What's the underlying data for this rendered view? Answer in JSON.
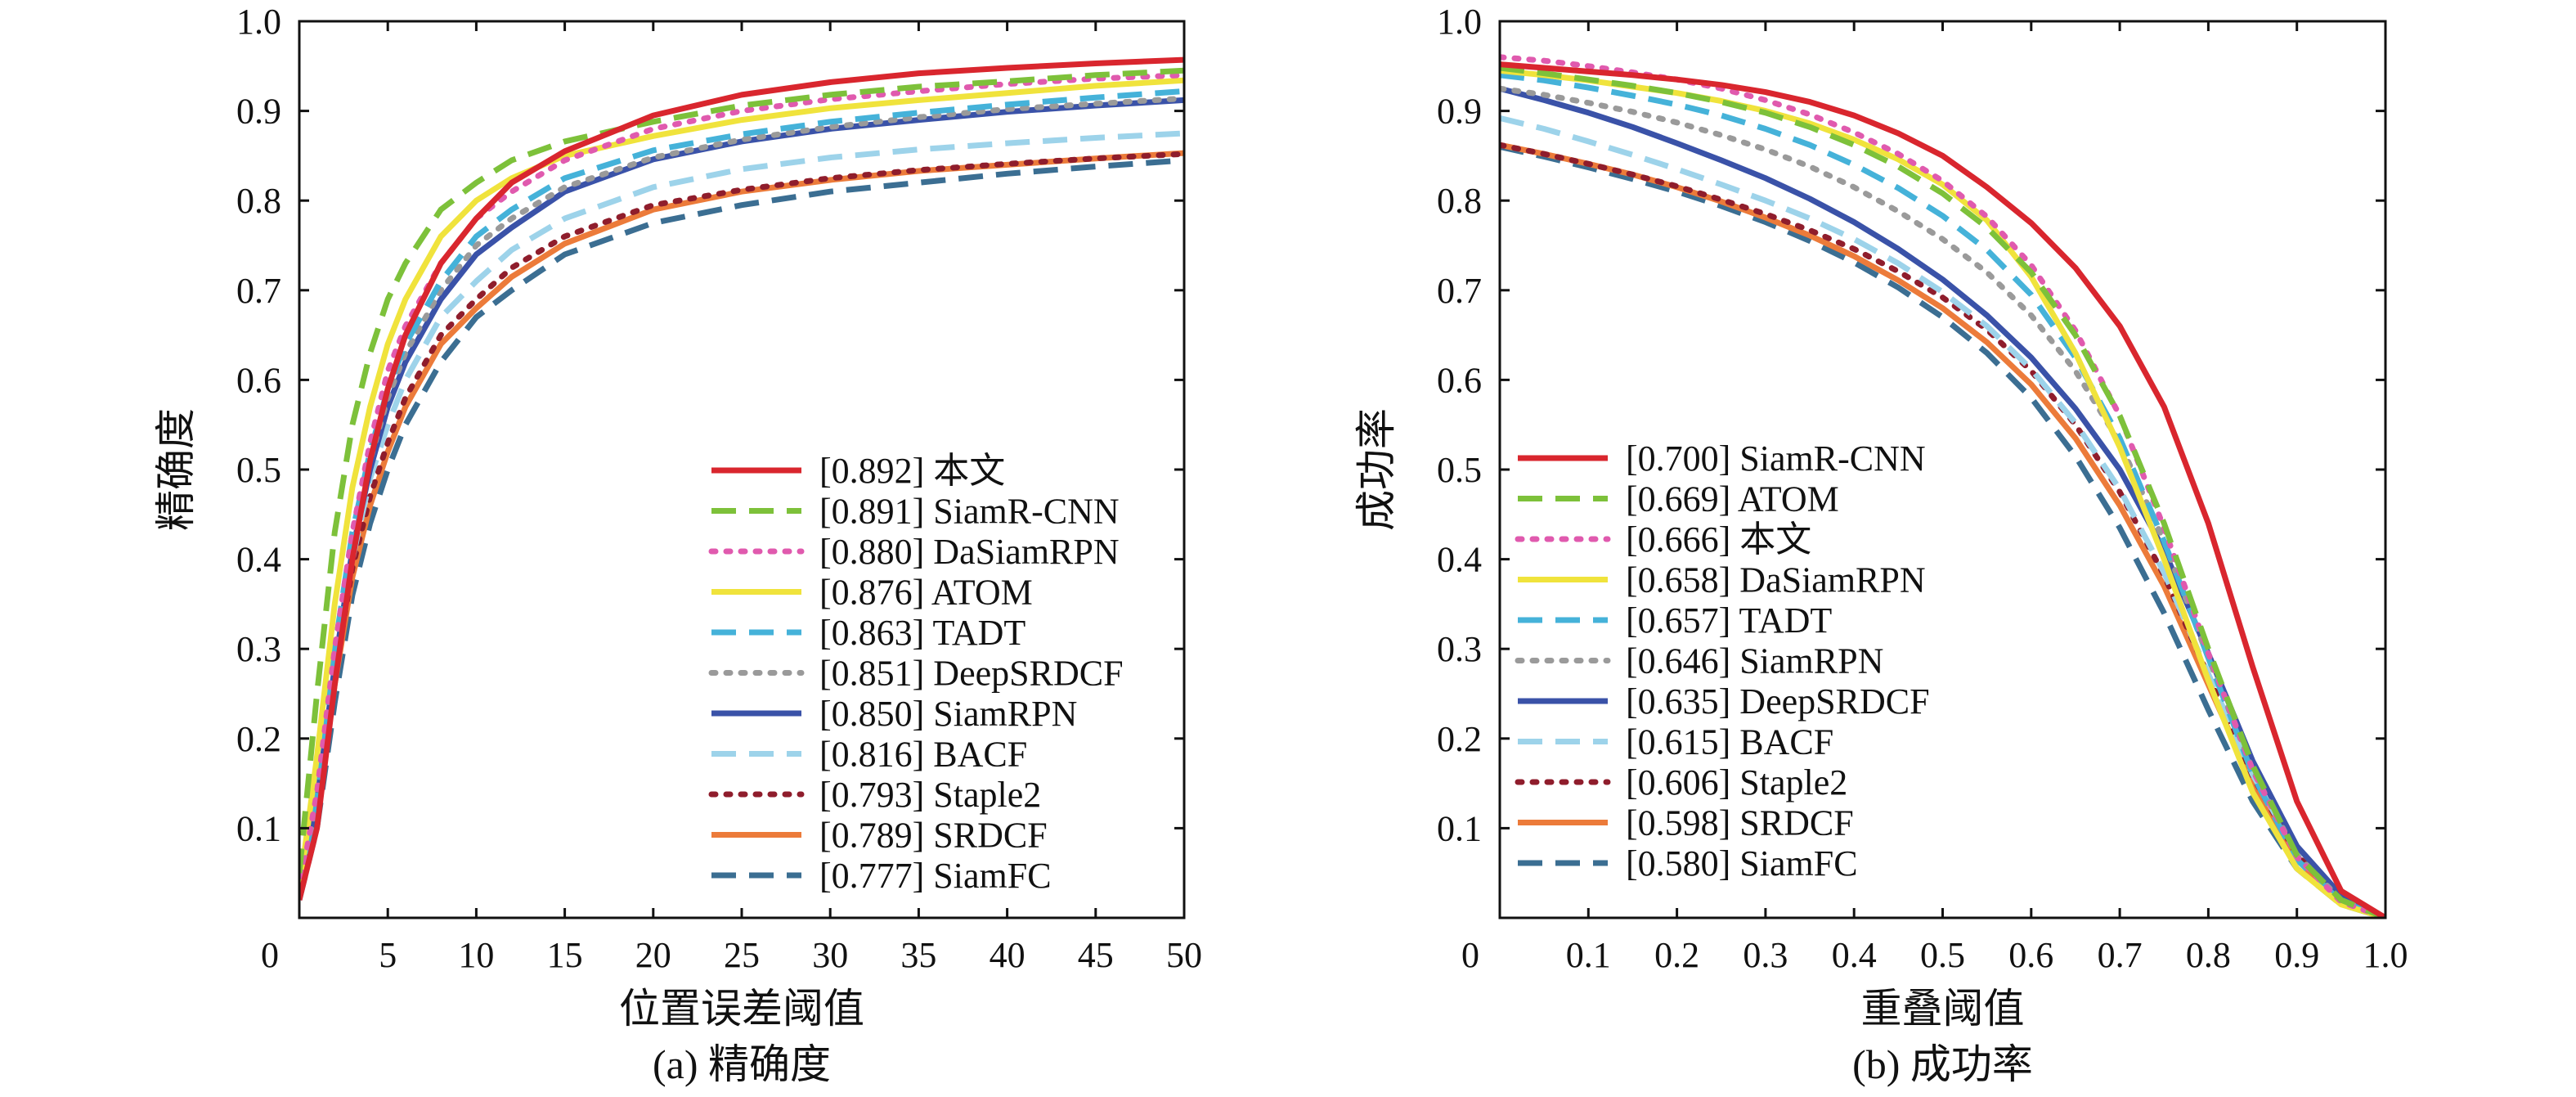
{
  "chart_data": [
    {
      "type": "line",
      "caption": "(a) 精确度",
      "xlabel": "位置误差阈值",
      "ylabel": "精确度",
      "xlim": [
        0,
        50
      ],
      "ylim": [
        0,
        1.0
      ],
      "x_ticks": [
        0,
        5,
        10,
        15,
        20,
        25,
        30,
        35,
        40,
        45,
        50
      ],
      "x_tick_labels": [
        "0",
        "5",
        "10",
        "15",
        "20",
        "25",
        "30",
        "35",
        "40",
        "45",
        "50"
      ],
      "y_ticks": [
        0.1,
        0.2,
        0.3,
        0.4,
        0.5,
        0.6,
        0.7,
        0.8,
        0.9,
        1.0
      ],
      "y_tick_labels": [
        "0.1",
        "0.2",
        "0.3",
        "0.4",
        "0.5",
        "0.6",
        "0.7",
        "0.8",
        "0.9",
        "1.0"
      ],
      "legend_placement": "lower-right",
      "x": [
        0,
        1,
        2,
        3,
        4,
        5,
        6,
        8,
        10,
        12,
        15,
        20,
        25,
        30,
        35,
        40,
        45,
        50
      ],
      "series": [
        {
          "name": "[0.892] 本文",
          "color": "#d9262e",
          "style": "solid",
          "values": [
            0.02,
            0.1,
            0.26,
            0.4,
            0.51,
            0.59,
            0.65,
            0.73,
            0.78,
            0.82,
            0.855,
            0.895,
            0.918,
            0.932,
            0.942,
            0.948,
            0.953,
            0.957
          ]
        },
        {
          "name": "[0.891] SiamR-CNN",
          "color": "#7dc13a",
          "style": "dashed",
          "values": [
            0.05,
            0.25,
            0.43,
            0.55,
            0.63,
            0.69,
            0.73,
            0.79,
            0.82,
            0.845,
            0.866,
            0.888,
            0.906,
            0.918,
            0.927,
            0.933,
            0.94,
            0.945
          ]
        },
        {
          "name": "[0.880] DaSiamRPN",
          "color": "#e05aae",
          "style": "dotted",
          "values": [
            0.03,
            0.14,
            0.3,
            0.43,
            0.53,
            0.61,
            0.66,
            0.73,
            0.78,
            0.81,
            0.845,
            0.88,
            0.9,
            0.913,
            0.922,
            0.93,
            0.936,
            0.94
          ]
        },
        {
          "name": "[0.876] ATOM",
          "color": "#f0e33c",
          "style": "solid",
          "values": [
            0.03,
            0.18,
            0.35,
            0.48,
            0.57,
            0.64,
            0.69,
            0.76,
            0.8,
            0.825,
            0.85,
            0.872,
            0.89,
            0.903,
            0.912,
            0.92,
            0.928,
            0.934
          ]
        },
        {
          "name": "[0.863] TADT",
          "color": "#45b2d9",
          "style": "dashed",
          "values": [
            0.03,
            0.14,
            0.3,
            0.43,
            0.52,
            0.59,
            0.64,
            0.71,
            0.76,
            0.79,
            0.825,
            0.856,
            0.874,
            0.888,
            0.898,
            0.907,
            0.915,
            0.922
          ]
        },
        {
          "name": "[0.851] DeepSRDCF",
          "color": "#9a9a9a",
          "style": "dotted",
          "values": [
            0.03,
            0.13,
            0.29,
            0.42,
            0.51,
            0.58,
            0.63,
            0.7,
            0.75,
            0.78,
            0.815,
            0.848,
            0.868,
            0.882,
            0.893,
            0.902,
            0.908,
            0.914
          ]
        },
        {
          "name": "[0.850] SiamRPN",
          "color": "#3a52a8",
          "style": "solid",
          "values": [
            0.03,
            0.13,
            0.28,
            0.41,
            0.5,
            0.57,
            0.62,
            0.69,
            0.74,
            0.77,
            0.81,
            0.846,
            0.866,
            0.88,
            0.89,
            0.899,
            0.906,
            0.912
          ]
        },
        {
          "name": "[0.816] BACF",
          "color": "#9dd3ea",
          "style": "dashed",
          "values": [
            0.03,
            0.12,
            0.27,
            0.4,
            0.49,
            0.55,
            0.6,
            0.67,
            0.71,
            0.745,
            0.78,
            0.815,
            0.835,
            0.848,
            0.857,
            0.864,
            0.87,
            0.875
          ]
        },
        {
          "name": "[0.793] Staple2",
          "color": "#8f1d2c",
          "style": "dotted",
          "values": [
            0.03,
            0.12,
            0.27,
            0.39,
            0.47,
            0.53,
            0.58,
            0.65,
            0.69,
            0.725,
            0.76,
            0.795,
            0.812,
            0.825,
            0.834,
            0.841,
            0.847,
            0.852
          ]
        },
        {
          "name": "[0.789] SRDCF",
          "color": "#ec7b3a",
          "style": "solid",
          "values": [
            0.03,
            0.11,
            0.26,
            0.38,
            0.46,
            0.52,
            0.57,
            0.64,
            0.68,
            0.715,
            0.752,
            0.79,
            0.81,
            0.823,
            0.833,
            0.84,
            0.847,
            0.853
          ]
        },
        {
          "name": "[0.777] SiamFC",
          "color": "#3b6e92",
          "style": "dashed",
          "values": [
            0.02,
            0.1,
            0.24,
            0.36,
            0.44,
            0.5,
            0.55,
            0.62,
            0.67,
            0.7,
            0.74,
            0.775,
            0.795,
            0.81,
            0.82,
            0.83,
            0.838,
            0.845
          ]
        }
      ]
    },
    {
      "type": "line",
      "caption": "(b) 成功率",
      "xlabel": "重叠阈值",
      "ylabel": "成功率",
      "xlim": [
        0,
        1.0
      ],
      "ylim": [
        0,
        1.0
      ],
      "x_ticks": [
        0,
        0.1,
        0.2,
        0.3,
        0.4,
        0.5,
        0.6,
        0.7,
        0.8,
        0.9,
        1.0
      ],
      "x_tick_labels": [
        "0",
        "0.1",
        "0.2",
        "0.3",
        "0.4",
        "0.5",
        "0.6",
        "0.7",
        "0.8",
        "0.9",
        "1.0"
      ],
      "y_ticks": [
        0.1,
        0.2,
        0.3,
        0.4,
        0.5,
        0.6,
        0.7,
        0.8,
        0.9,
        1.0
      ],
      "y_tick_labels": [
        "0.1",
        "0.2",
        "0.3",
        "0.4",
        "0.5",
        "0.6",
        "0.7",
        "0.8",
        "0.9",
        "1.0"
      ],
      "legend_placement": "lower-left",
      "x": [
        0,
        0.05,
        0.1,
        0.15,
        0.2,
        0.25,
        0.3,
        0.35,
        0.4,
        0.45,
        0.5,
        0.55,
        0.6,
        0.65,
        0.7,
        0.75,
        0.8,
        0.85,
        0.9,
        0.95,
        1.0
      ],
      "series": [
        {
          "name": "[0.700] SiamR-CNN",
          "color": "#d9262e",
          "style": "solid",
          "values": [
            0.952,
            0.948,
            0.944,
            0.94,
            0.935,
            0.929,
            0.921,
            0.91,
            0.895,
            0.875,
            0.85,
            0.815,
            0.775,
            0.725,
            0.66,
            0.57,
            0.44,
            0.28,
            0.13,
            0.03,
            0.0
          ]
        },
        {
          "name": "[0.669] ATOM",
          "color": "#7dc13a",
          "style": "dashed",
          "values": [
            0.948,
            0.942,
            0.935,
            0.928,
            0.92,
            0.91,
            0.898,
            0.882,
            0.862,
            0.838,
            0.808,
            0.77,
            0.72,
            0.65,
            0.56,
            0.44,
            0.3,
            0.17,
            0.07,
            0.02,
            0.0
          ]
        },
        {
          "name": "[0.666] 本文",
          "color": "#e05aae",
          "style": "dotted",
          "values": [
            0.96,
            0.956,
            0.95,
            0.943,
            0.935,
            0.925,
            0.912,
            0.896,
            0.876,
            0.852,
            0.822,
            0.782,
            0.728,
            0.655,
            0.56,
            0.435,
            0.295,
            0.165,
            0.068,
            0.018,
            0.0
          ]
        },
        {
          "name": "[0.658] DaSiamRPN",
          "color": "#f0e33c",
          "style": "solid",
          "values": [
            0.945,
            0.94,
            0.934,
            0.927,
            0.92,
            0.911,
            0.9,
            0.886,
            0.868,
            0.846,
            0.818,
            0.778,
            0.715,
            0.63,
            0.525,
            0.4,
            0.265,
            0.14,
            0.055,
            0.015,
            0.0
          ]
        },
        {
          "name": "[0.657] TADT",
          "color": "#45b2d9",
          "style": "dashed",
          "values": [
            0.94,
            0.934,
            0.926,
            0.917,
            0.907,
            0.895,
            0.88,
            0.862,
            0.84,
            0.814,
            0.783,
            0.745,
            0.695,
            0.625,
            0.535,
            0.42,
            0.29,
            0.16,
            0.065,
            0.018,
            0.0
          ]
        },
        {
          "name": "[0.646] SiamRPN",
          "color": "#9a9a9a",
          "style": "dotted",
          "values": [
            0.925,
            0.918,
            0.909,
            0.899,
            0.887,
            0.873,
            0.857,
            0.838,
            0.815,
            0.788,
            0.757,
            0.72,
            0.672,
            0.61,
            0.53,
            0.42,
            0.29,
            0.165,
            0.07,
            0.02,
            0.0
          ]
        },
        {
          "name": "[0.635] DeepSRDCF",
          "color": "#3a52a8",
          "style": "solid",
          "values": [
            0.925,
            0.912,
            0.898,
            0.882,
            0.864,
            0.845,
            0.825,
            0.802,
            0.776,
            0.746,
            0.712,
            0.672,
            0.625,
            0.568,
            0.5,
            0.41,
            0.295,
            0.175,
            0.08,
            0.025,
            0.0
          ]
        },
        {
          "name": "[0.615] BACF",
          "color": "#9dd3ea",
          "style": "dashed",
          "values": [
            0.892,
            0.88,
            0.866,
            0.851,
            0.835,
            0.818,
            0.8,
            0.78,
            0.757,
            0.73,
            0.698,
            0.66,
            0.612,
            0.552,
            0.478,
            0.385,
            0.272,
            0.16,
            0.072,
            0.022,
            0.0
          ]
        },
        {
          "name": "[0.606] Staple2",
          "color": "#8f1d2c",
          "style": "dotted",
          "values": [
            0.862,
            0.852,
            0.841,
            0.829,
            0.816,
            0.801,
            0.785,
            0.767,
            0.746,
            0.721,
            0.692,
            0.656,
            0.61,
            0.55,
            0.475,
            0.382,
            0.27,
            0.158,
            0.07,
            0.02,
            0.0
          ]
        },
        {
          "name": "[0.598] SRDCF",
          "color": "#ec7b3a",
          "style": "solid",
          "values": [
            0.862,
            0.852,
            0.841,
            0.829,
            0.815,
            0.799,
            0.781,
            0.761,
            0.738,
            0.711,
            0.68,
            0.642,
            0.595,
            0.535,
            0.46,
            0.37,
            0.26,
            0.15,
            0.065,
            0.018,
            0.0
          ]
        },
        {
          "name": "[0.580] SiamFC",
          "color": "#3b6e92",
          "style": "dashed",
          "values": [
            0.86,
            0.849,
            0.837,
            0.824,
            0.81,
            0.794,
            0.776,
            0.755,
            0.731,
            0.703,
            0.67,
            0.63,
            0.58,
            0.515,
            0.435,
            0.34,
            0.232,
            0.13,
            0.055,
            0.015,
            0.0
          ]
        }
      ]
    }
  ]
}
